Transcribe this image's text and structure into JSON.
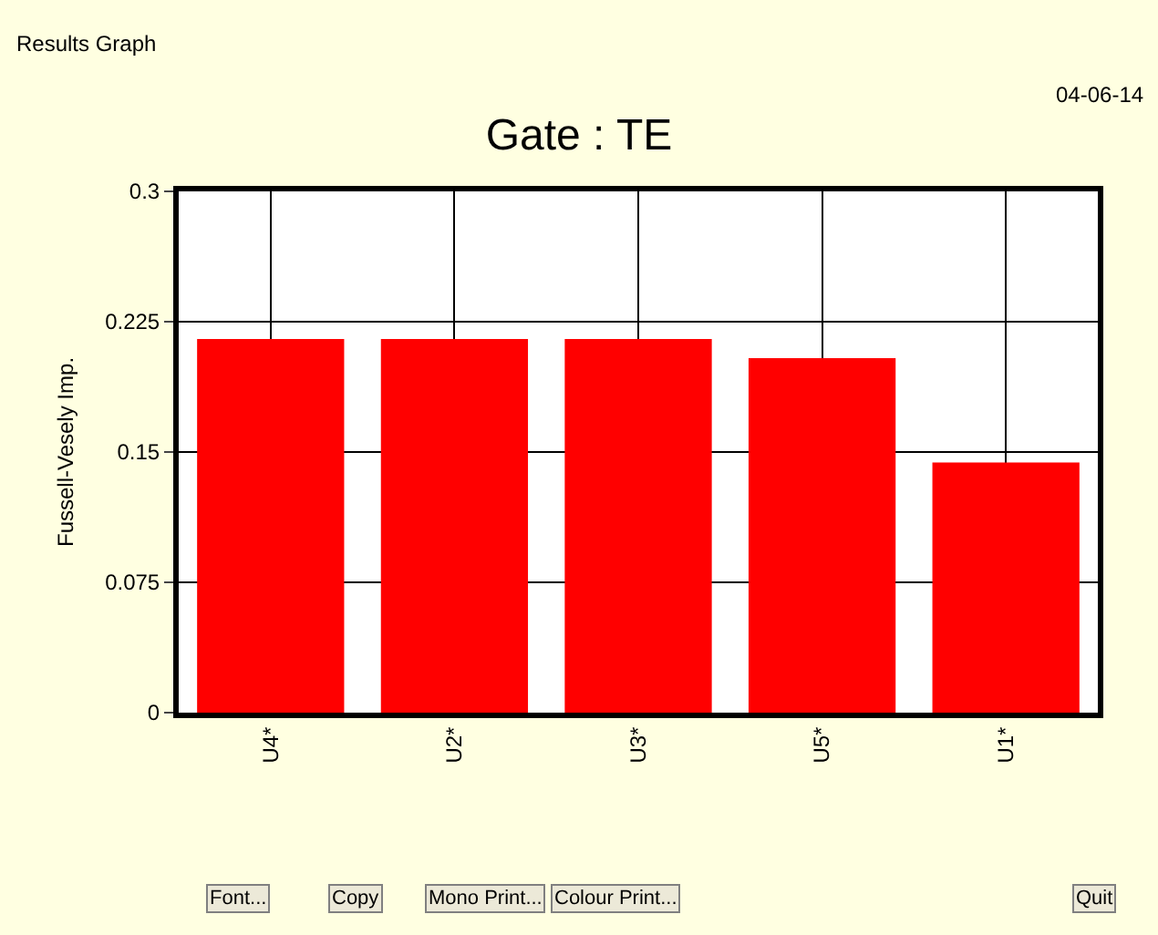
{
  "chart_data": {
    "type": "bar",
    "title": "Gate : TE",
    "ylabel": "Fussell-Vesely Imp.",
    "categories": [
      "U4*",
      "U2*",
      "U3*",
      "U5*",
      "U1*"
    ],
    "values": [
      0.215,
      0.215,
      0.215,
      0.204,
      0.144
    ],
    "color": "#ff0000",
    "ylim": [
      0,
      0.3
    ],
    "yticks": [
      0,
      0.075,
      0.15,
      0.225,
      0.3
    ],
    "grid": true,
    "annotations": [
      "Results Graph",
      "04-06-14",
      "Font...",
      "Copy",
      "Mono Print...",
      "Colour Print...",
      "Quit"
    ]
  }
}
